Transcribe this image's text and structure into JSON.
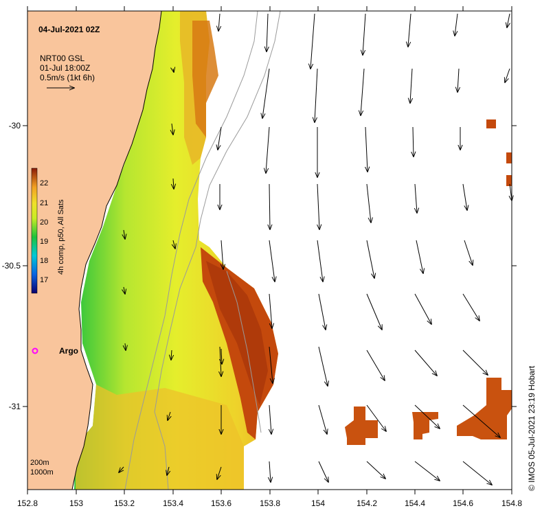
{
  "map": {
    "date_title": "04-Jul-2021 02Z",
    "current_product": "NRT00 GSL",
    "current_time": "01-Jul 18:00Z",
    "scale_label": "0.5m/s (1kt 6h)",
    "colorbar_label": "4h comp, p50, All Sats",
    "colorbar_ticks": [
      "22",
      "21",
      "20",
      "19",
      "18",
      "17"
    ],
    "float_label": "Argo",
    "isobath_labels": [
      "200m",
      "1000m"
    ],
    "credit": "© IMOS 05-Jul-2021 23:19 Hobart",
    "x_ticks": [
      "152.8",
      "153",
      "153.2",
      "153.4",
      "153.6",
      "153.8",
      "154",
      "154.2",
      "154.4",
      "154.6",
      "154.8"
    ],
    "y_ticks": [
      "-30",
      "-30.5",
      "-31"
    ],
    "colors": {
      "land": "#f9c59c",
      "coastline": "#000000",
      "isobath": "#9a9a9a",
      "argo_marker": "#ff00ff",
      "sst_cold": "#1fc23a",
      "sst_mid": "#d9ee2a",
      "sst_warm": "#eeb025",
      "sst_hot": "#c4490c"
    },
    "icons": {
      "argo": "argo-float-icon",
      "scale_arrow": "arrow-right-icon"
    }
  }
}
